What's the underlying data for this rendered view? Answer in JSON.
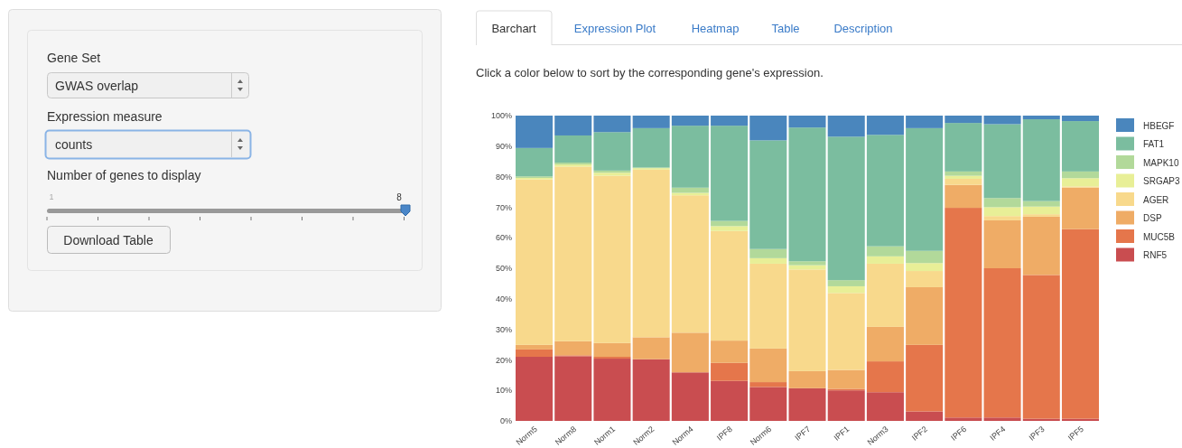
{
  "chart_data": {
    "type": "bar",
    "stacked": true,
    "subtitle": "Click a color below to sort by the corresponding gene's expression.",
    "annotations": [
      "Barchart",
      "Expression Plot",
      "Heatmap",
      "Table",
      "Description",
      "Gene Set",
      "GWAS overlap",
      "Expression measure",
      "counts",
      "Number of genes to display",
      "1",
      "8",
      "Download Table"
    ],
    "categories": [
      "Norm5",
      "Norm8",
      "Norm1",
      "Norm2",
      "Norm4",
      "IPF8",
      "Norm6",
      "IPF7",
      "IPF1",
      "Norm3",
      "IPF2",
      "IPF6",
      "IPF4",
      "IPF3",
      "IPF5"
    ],
    "ylim": [
      0,
      100
    ],
    "yticks": [
      {
        "value": 0,
        "label": "0%"
      },
      {
        "value": 10,
        "label": "10%"
      },
      {
        "value": 20,
        "label": "20%"
      },
      {
        "value": 30,
        "label": "30%"
      },
      {
        "value": 40,
        "label": "40%"
      },
      {
        "value": 50,
        "label": "50%"
      },
      {
        "value": 60,
        "label": "60%"
      },
      {
        "value": 70,
        "label": "70%"
      },
      {
        "value": 80,
        "label": "80%"
      },
      {
        "value": 90,
        "label": "90%"
      },
      {
        "value": 100,
        "label": "100%"
      }
    ],
    "legend": "right",
    "series": [
      {
        "name": "RNF5",
        "color": "#c94d50",
        "values": [
          21,
          21.2,
          20.4,
          20.2,
          15.9,
          13.1,
          11.1,
          10.7,
          10,
          9.4,
          3.1,
          1.1,
          1.1,
          0.7,
          0.7
        ]
      },
      {
        "name": "MUC5B",
        "color": "#e5764b",
        "values": [
          2.4,
          0.3,
          0.6,
          0,
          0,
          5.9,
          1.6,
          0,
          0.5,
          10.1,
          21.8,
          68.7,
          48.9,
          47.1,
          62.1
        ]
      },
      {
        "name": "DSP",
        "color": "#efac66",
        "values": [
          1.5,
          4.6,
          4.5,
          7.2,
          13,
          7.3,
          11,
          5.6,
          6.2,
          11.3,
          18.9,
          7.5,
          15.7,
          19.1,
          13.6
        ]
      },
      {
        "name": "AGER",
        "color": "#f8d98c",
        "values": [
          54.2,
          57.2,
          54.8,
          54.9,
          45,
          35.9,
          27.8,
          33.3,
          25.2,
          20.7,
          5.3,
          2,
          1.4,
          0.8,
          0.4
        ]
      },
      {
        "name": "SRGAP3",
        "color": "#e8ef97",
        "values": [
          0.5,
          0.7,
          1,
          0.5,
          0.8,
          1.6,
          1.8,
          1.4,
          2.2,
          2.4,
          2.6,
          1,
          2.9,
          2.5,
          2.7
        ]
      },
      {
        "name": "MAPK10",
        "color": "#b2d99a",
        "values": [
          0.5,
          0.6,
          0.7,
          0.2,
          1.7,
          1.7,
          3,
          1.3,
          2,
          3.3,
          4,
          1.4,
          3,
          1.8,
          2.2
        ]
      },
      {
        "name": "FAT1",
        "color": "#7bbd9f",
        "values": [
          9.3,
          8.9,
          12.6,
          12.9,
          20.3,
          31.2,
          35.6,
          43.8,
          47,
          36.5,
          40.2,
          15.9,
          24.2,
          26.8,
          16.5
        ]
      },
      {
        "name": "HBEGF",
        "color": "#4a86bd",
        "values": [
          10.6,
          6.5,
          5.4,
          4.1,
          3.3,
          3.3,
          8.1,
          3.9,
          6.9,
          6.3,
          4.1,
          2.4,
          2.8,
          1.2,
          1.8
        ]
      }
    ]
  }
}
